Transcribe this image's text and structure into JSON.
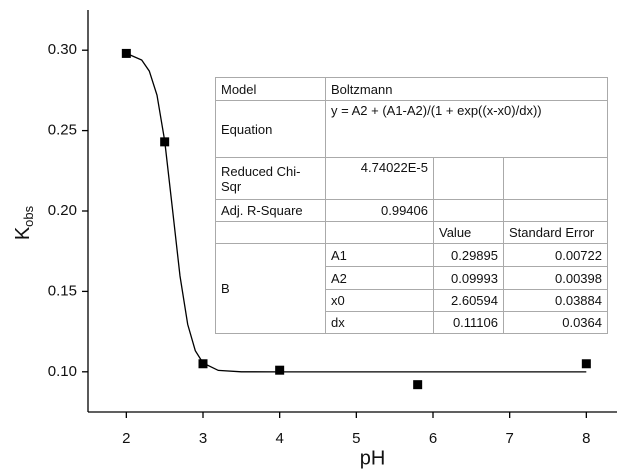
{
  "chart_data": {
    "type": "scatter",
    "x_label": "pH",
    "y_label": "K",
    "y_label_sub": "obs",
    "x": [
      2,
      2.5,
      3,
      4,
      5.8,
      8
    ],
    "values": [
      0.298,
      0.243,
      0.105,
      0.101,
      0.092,
      0.105
    ],
    "color": "#000000",
    "fit": {
      "x": [
        2,
        2.2,
        2.3,
        2.4,
        2.5,
        2.6,
        2.7,
        2.8,
        2.9,
        3.0,
        3.2,
        3.5,
        4,
        5,
        6,
        7,
        8
      ],
      "y": [
        0.2981,
        0.2939,
        0.287,
        0.272,
        0.2436,
        0.2021,
        0.1596,
        0.1295,
        0.1131,
        0.1055,
        0.1009,
        0.09998,
        0.09993,
        0.09993,
        0.09993,
        0.09993,
        0.09993
      ],
      "color": "#000000"
    },
    "xlim": [
      1.5,
      8.4
    ],
    "xticks": [
      2,
      3,
      4,
      5,
      6,
      7,
      8
    ],
    "ylim": [
      0.075,
      0.325
    ],
    "yticks": [
      {
        "value": 0.1,
        "label": "0.10"
      },
      0.15,
      {
        "value": 0.2,
        "label": "0.20"
      },
      0.25,
      {
        "value": 0.3,
        "label": "0.30"
      }
    ],
    "grid": false
  },
  "table": {
    "model": [
      "Model",
      "Boltzmann"
    ],
    "equation": [
      "Equation",
      "y = A2 + (A1-A2)/(1 + exp((x-x0)/dx))"
    ],
    "chi": [
      "Reduced Chi-Sqr",
      "4.74022E-5"
    ],
    "r2": [
      "Adj. R-Square",
      "0.99406"
    ],
    "header": [
      "Value",
      "Standard Error"
    ],
    "group": "B",
    "params": [
      [
        "A1",
        "0.29895",
        "0.00722"
      ],
      [
        "A2",
        "0.09993",
        "0.00398"
      ],
      [
        "x0",
        "2.60594",
        "0.03884"
      ],
      [
        "dx",
        "0.11106",
        "0.0364"
      ]
    ]
  }
}
